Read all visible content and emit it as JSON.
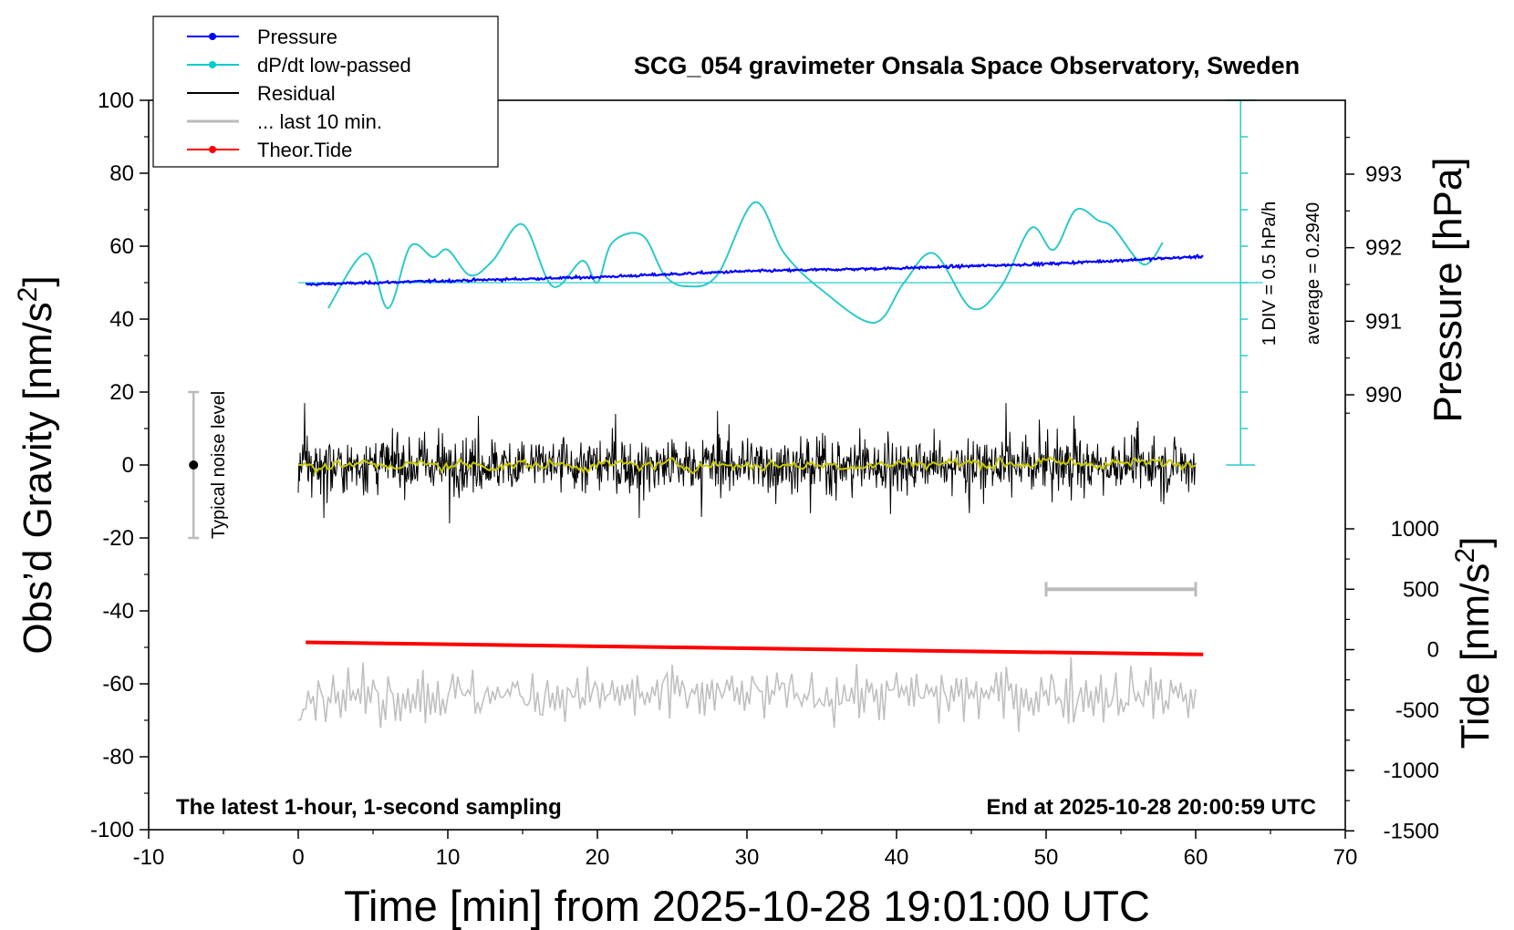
{
  "chart_data": {
    "type": "line",
    "title": "SCG_054 gravimeter Onsala Space Observatory, Sweden",
    "xlabel": "Time [min] from 2025-10-28 19:01:00 UTC",
    "ylabel_left_main": "Obs’d Gravity [nm/s",
    "ylabel_left_sup": "2",
    "ylabel_left_close": "]",
    "ylabel_right_top": "Pressure [hPa]",
    "ylabel_right_bottom_main": "Tide [nm/s",
    "ylabel_right_bottom_sup": "2",
    "ylabel_right_bottom_close": "]",
    "xlim": [
      -10,
      70
    ],
    "ylim": [
      -100,
      100
    ],
    "x_ticks": [
      "-10",
      "0",
      "10",
      "20",
      "30",
      "40",
      "50",
      "60",
      "70"
    ],
    "y_ticks_left": [
      "-100",
      "-80",
      "-60",
      "-40",
      "-20",
      "0",
      "20",
      "40",
      "60",
      "80",
      "100"
    ],
    "pressure_ticks": [
      {
        "label": "990",
        "value": 990
      },
      {
        "label": "991",
        "value": 991
      },
      {
        "label": "992",
        "value": 992
      },
      {
        "label": "993",
        "value": 993
      }
    ],
    "tide_ticks": [
      {
        "label": "-1500",
        "value": -1500
      },
      {
        "label": "-1000",
        "value": -1000
      },
      {
        "label": "-500",
        "value": -500
      },
      {
        "label": "0",
        "value": 0
      },
      {
        "label": "500",
        "value": 500
      },
      {
        "label": "1000",
        "value": 1000
      }
    ],
    "legend": [
      {
        "name": "Pressure",
        "color": "#0000ff",
        "marker": true
      },
      {
        "name": "dP/dt low-passed",
        "color": "#00cccc",
        "marker": true
      },
      {
        "name": "Residual",
        "color": "#000000",
        "marker": false
      },
      {
        "name": "... last 10 min.",
        "color": "#bbbbbb",
        "marker": false
      },
      {
        "name": "Theor.Tide",
        "color": "#ff0000",
        "marker": true
      }
    ],
    "series": [
      {
        "name": "Pressure",
        "unit": "hPa",
        "color": "#0000ff",
        "x": [
          0.5,
          10,
          20,
          30,
          40,
          50,
          60.5
        ],
        "values": [
          991.5,
          991.55,
          991.6,
          991.68,
          991.72,
          991.78,
          991.88
        ]
      },
      {
        "name": "dP/dt low-passed",
        "color": "#2ec9c9",
        "baseline": 50,
        "x": [
          2,
          4.5,
          6,
          7.5,
          9,
          10,
          11.5,
          13,
          15,
          17,
          19,
          20,
          21,
          23,
          24.5,
          26,
          28,
          30.5,
          32.5,
          35,
          38.5,
          40.5,
          42.5,
          45,
          47,
          49,
          50.5,
          52,
          53.5,
          54.5,
          56.5,
          57.8
        ],
        "values": [
          43,
          58,
          43,
          60,
          57,
          59,
          52,
          56,
          66,
          49,
          56,
          50,
          61,
          63,
          52,
          49,
          52,
          72,
          58,
          48,
          39,
          50,
          58,
          43,
          49,
          65,
          59,
          70,
          67,
          65,
          55,
          61
        ]
      },
      {
        "name": "Residual",
        "color": "#000000",
        "x_range": [
          0,
          60
        ],
        "amplitude": 10,
        "mean": 0
      },
      {
        "name": "... last 10 min.",
        "color": "#c0c0c0",
        "x_range": [
          0,
          60
        ],
        "mean": -63,
        "amplitude": 8
      },
      {
        "name": "Theor.Tide",
        "unit": "nm/s2",
        "color": "#ff0000",
        "x": [
          0.5,
          60.5
        ],
        "values": [
          60,
          -40
        ]
      }
    ],
    "scale_bar": {
      "label": "1 DIV = 0.5 hPa/h",
      "average_label": "average = 0.2940",
      "x": 63
    },
    "noise_level": {
      "label": "Typical noise level",
      "x": -7,
      "center": 0,
      "half_range": 20
    },
    "time_bar": {
      "x_start": 50,
      "x_end": 60,
      "tide_value": 500
    },
    "footer_left": "The latest 1-hour, 1-second sampling",
    "footer_right": "End at 2025-10-28 20:00:59 UTC"
  }
}
